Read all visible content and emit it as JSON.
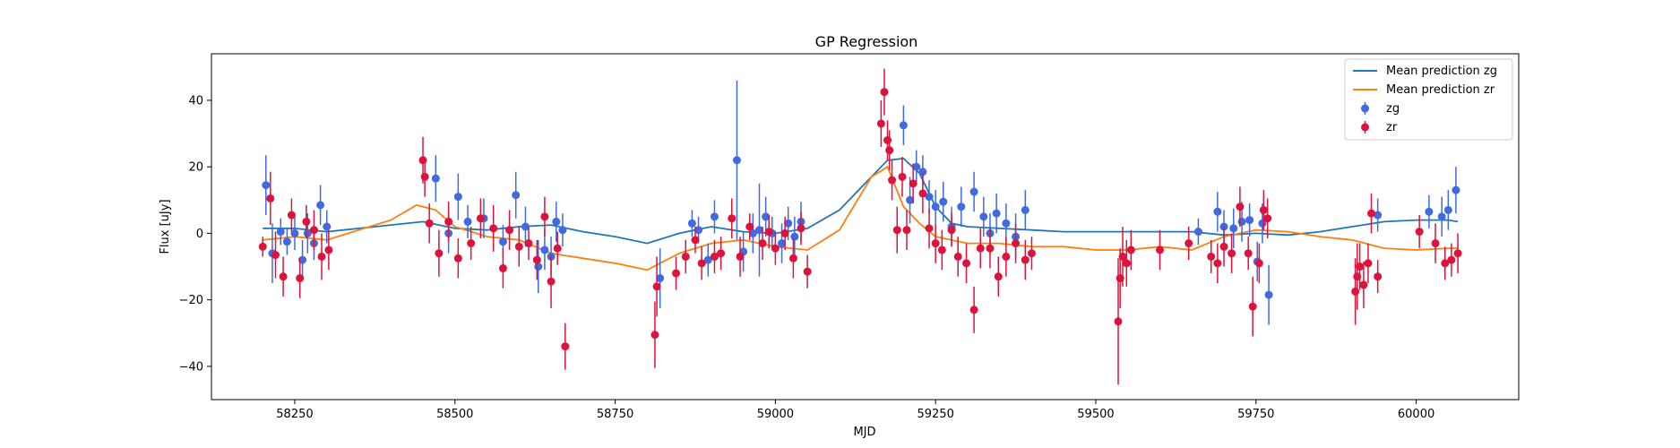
{
  "chart_data": {
    "type": "scatter",
    "title": "GP Regression",
    "xlabel": "MJD",
    "ylabel": "Flux [uJy]",
    "xlim": [
      58120,
      60160
    ],
    "ylim": [
      -50,
      54
    ],
    "xticks": [
      58250,
      58500,
      58750,
      59000,
      59250,
      59500,
      59750,
      60000
    ],
    "xtick_labels": [
      "58250",
      "58500",
      "58750",
      "59000",
      "59250",
      "59500",
      "59750",
      "60000"
    ],
    "yticks": [
      -40,
      -20,
      0,
      20,
      40
    ],
    "ytick_labels": [
      "−40",
      "−20",
      "0",
      "20",
      "40"
    ],
    "grid": false,
    "legend_position": "top-right",
    "colors": {
      "mean_zg": "#1f77b4",
      "mean_zr": "#ff7f0e",
      "zg": "#4169e1",
      "zr": "#dc143c"
    },
    "lines": [
      {
        "name": "Mean prediction zg",
        "x": [
          58200,
          58250,
          58300,
          58350,
          58400,
          58450,
          58500,
          58550,
          58600,
          58650,
          58700,
          58750,
          58800,
          58850,
          58900,
          58950,
          59000,
          59050,
          59100,
          59150,
          59175,
          59200,
          59225,
          59250,
          59275,
          59300,
          59350,
          59400,
          59450,
          59500,
          59550,
          59600,
          59650,
          59700,
          59750,
          59800,
          59850,
          59900,
          59950,
          60000,
          60050,
          60065
        ],
        "y": [
          1.5,
          1.5,
          0.5,
          1.5,
          2.5,
          3.5,
          1.5,
          1,
          2,
          2.5,
          0.5,
          -1,
          -3,
          0,
          2,
          0.5,
          0,
          1.5,
          7,
          17,
          22,
          22.5,
          18,
          8,
          3,
          2,
          1.5,
          1,
          0.5,
          0.5,
          0.5,
          0.5,
          0.5,
          -0.5,
          0,
          -0.5,
          0.5,
          2,
          3.5,
          4,
          4,
          3.5
        ]
      },
      {
        "name": "Mean prediction zr",
        "x": [
          58200,
          58250,
          58300,
          58350,
          58400,
          58440,
          58470,
          58500,
          58550,
          58600,
          58650,
          58700,
          58750,
          58800,
          58850,
          58900,
          58950,
          59000,
          59050,
          59100,
          59150,
          59175,
          59200,
          59225,
          59250,
          59300,
          59350,
          59400,
          59450,
          59500,
          59550,
          59600,
          59650,
          59700,
          59750,
          59800,
          59850,
          59900,
          59950,
          60000,
          60050,
          60065
        ],
        "y": [
          -2,
          -1,
          -2,
          1,
          4,
          8.5,
          7,
          2,
          -1,
          -2,
          -6,
          -7.5,
          -9,
          -11,
          -6,
          -3,
          -2,
          -4,
          -5,
          1,
          17,
          20,
          8,
          3,
          -1,
          -3,
          -3,
          -4,
          -4,
          -5,
          -5,
          -4,
          -5,
          -1,
          1,
          0.5,
          -1,
          -2,
          -4.5,
          -5,
          -4.5,
          -4.5
        ]
      }
    ],
    "series": [
      {
        "name": "zg",
        "x": [
          58205,
          58215,
          58228,
          58238,
          58250,
          58262,
          58270,
          58280,
          58290,
          58300,
          58470,
          58490,
          58505,
          58520,
          58545,
          58575,
          58595,
          58610,
          58630,
          58640,
          58650,
          58658,
          58668,
          58820,
          58870,
          58880,
          58895,
          58905,
          58940,
          58950,
          58965,
          58975,
          58985,
          58995,
          59010,
          59020,
          59030,
          59040,
          59200,
          59210,
          59220,
          59230,
          59240,
          59250,
          59262,
          59275,
          59290,
          59310,
          59325,
          59335,
          59345,
          59360,
          59375,
          59390,
          59660,
          59690,
          59700,
          59715,
          59728,
          59740,
          59752,
          59760,
          59770,
          59940,
          60020,
          60040,
          60050,
          60062
        ],
        "y": [
          14.5,
          -6,
          0.5,
          -2.5,
          0,
          -8,
          0,
          -3,
          8.5,
          2,
          16.5,
          0,
          11,
          3.5,
          4.5,
          -2.5,
          11.5,
          2,
          -10,
          -5,
          -7,
          3.5,
          1,
          -13.5,
          3,
          1,
          -8,
          5,
          22,
          -5.5,
          0,
          1,
          5,
          0,
          -3,
          3,
          -1,
          3.5,
          32.5,
          10,
          20,
          18.5,
          11,
          8,
          9.5,
          2,
          8,
          12.5,
          5,
          0,
          6,
          3,
          -1,
          7,
          0.5,
          6.5,
          2,
          1.5,
          3.5,
          4,
          -8.5,
          3,
          -18.5,
          5.5,
          6.5,
          5,
          7,
          13
        ],
        "err": [
          9,
          9,
          4,
          4,
          5,
          6,
          6,
          5,
          6,
          5,
          7,
          6,
          7,
          5,
          6,
          5,
          7,
          6,
          8,
          6,
          6,
          6,
          5,
          9,
          4,
          4,
          5,
          5,
          24,
          6,
          6,
          14,
          6,
          5,
          6,
          5,
          6,
          6,
          6,
          7,
          5,
          5,
          5,
          5,
          6,
          6,
          6,
          6,
          6,
          6,
          6,
          6,
          7,
          6,
          4,
          6,
          5,
          6,
          6,
          5,
          6,
          6,
          9,
          5,
          5,
          6,
          6,
          7
        ]
      },
      {
        "name": "zr",
        "x": [
          58200,
          58212,
          58220,
          58232,
          58245,
          58258,
          58268,
          58280,
          58292,
          58303,
          58450,
          58453,
          58460,
          58475,
          58490,
          58505,
          58525,
          58540,
          58560,
          58575,
          58585,
          58600,
          58615,
          58628,
          58640,
          58650,
          58660,
          58672,
          58812,
          58815,
          58845,
          58860,
          58875,
          58885,
          58905,
          58915,
          58932,
          58945,
          58960,
          58980,
          58990,
          59000,
          59015,
          59028,
          59040,
          59050,
          59165,
          59170,
          59175,
          59178,
          59182,
          59190,
          59198,
          59205,
          59215,
          59230,
          59240,
          59250,
          59260,
          59275,
          59285,
          59298,
          59310,
          59320,
          59335,
          59348,
          59360,
          59375,
          59390,
          59400,
          59535,
          59538,
          59542,
          59548,
          59555,
          59600,
          59645,
          59680,
          59690,
          59700,
          59712,
          59725,
          59738,
          59745,
          59755,
          59762,
          59768,
          59905,
          59908,
          59912,
          59918,
          59925,
          59930,
          59940,
          60005,
          60030,
          60045,
          60055,
          60065
        ],
        "y": [
          -4,
          10.5,
          -6.5,
          -13,
          5.5,
          -13.5,
          3.5,
          1,
          -7,
          -5,
          22,
          17,
          3,
          -6,
          3.5,
          -7.5,
          -3,
          4.5,
          1.5,
          -10.5,
          1,
          -4,
          -3,
          -8,
          5,
          -14.5,
          -4.5,
          -34,
          -30.5,
          -16,
          -12,
          -7,
          -2,
          -9,
          -7,
          -6,
          4.5,
          -7,
          2,
          -3,
          0.5,
          -4.5,
          0,
          -7.5,
          1.5,
          -11.5,
          33,
          42.5,
          28,
          25,
          16,
          1,
          17,
          1,
          15,
          12,
          1.5,
          -3,
          -5,
          1,
          -7,
          -9,
          -23,
          -4.5,
          -4.5,
          -13,
          -7,
          -3,
          -8,
          -6,
          -26.5,
          -13.5,
          -7,
          -9,
          -5,
          -5,
          -3,
          -7,
          -9,
          -4,
          -6,
          8,
          -6,
          -22,
          -9,
          7,
          4.5,
          -17.5,
          -13,
          -10,
          -15.5,
          -9,
          6,
          -13,
          0.5,
          -3,
          -9,
          -8,
          -6
        ],
        "err": [
          3,
          8,
          7,
          6,
          5,
          6,
          5,
          6,
          7,
          6,
          7,
          6,
          6,
          7,
          6,
          6,
          5,
          6,
          7,
          6,
          6,
          6,
          5,
          6,
          6,
          8,
          5,
          7,
          10,
          9,
          5,
          5,
          4,
          5,
          5,
          5,
          6,
          6,
          4,
          5,
          5,
          5,
          5,
          6,
          5,
          5,
          7,
          7,
          6,
          6,
          6,
          7,
          6,
          6,
          6,
          6,
          6,
          6,
          6,
          5,
          6,
          6,
          7,
          6,
          6,
          6,
          6,
          6,
          6,
          5,
          19,
          9,
          9,
          7,
          6,
          6,
          5,
          5,
          6,
          6,
          6,
          6,
          5,
          9,
          6,
          6,
          6,
          10,
          10,
          7,
          7,
          6,
          6,
          5,
          5,
          6,
          5,
          5,
          6
        ]
      }
    ],
    "legend": [
      "Mean prediction zg",
      "Mean prediction zr",
      "zg",
      "zr"
    ]
  }
}
